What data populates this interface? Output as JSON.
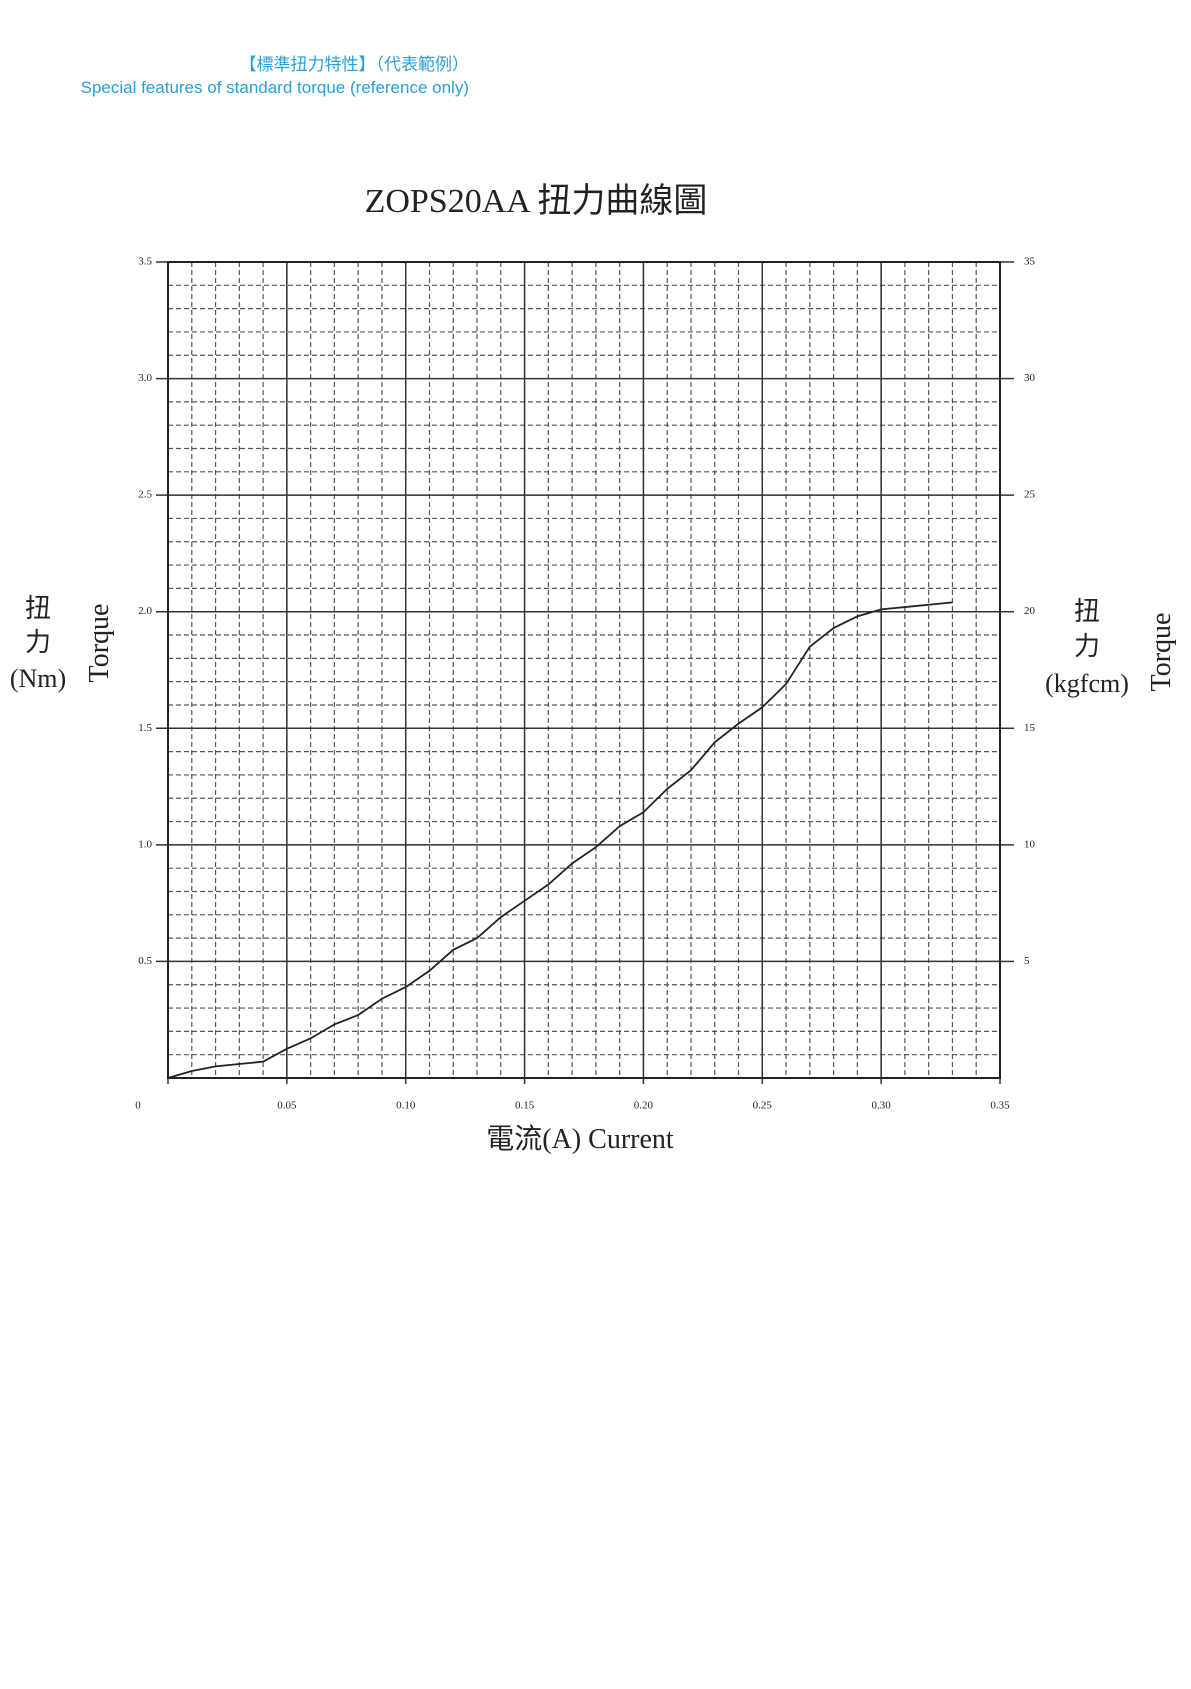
{
  "header": {
    "title": "【標準扭力特性】（代表範例）",
    "subtitle": "Special features of standard torque  (reference only)"
  },
  "chart_data": {
    "type": "line",
    "title": "ZOPS20AA 扭力曲線圖",
    "x_label": "電流(A) Current",
    "y_label": {
      "zh": "扭",
      "zh2": "力",
      "unit": "(Nm)",
      "en": "Torque"
    },
    "y2_label": {
      "zh": "扭",
      "zh2": "力",
      "unit": "(kgfcm)",
      "en": "Torque"
    },
    "x": [
      0,
      0.01,
      0.02,
      0.03,
      0.04,
      0.05,
      0.06,
      0.07,
      0.08,
      0.09,
      0.1,
      0.11,
      0.12,
      0.13,
      0.14,
      0.15,
      0.16,
      0.17,
      0.18,
      0.19,
      0.2,
      0.21,
      0.22,
      0.23,
      0.24,
      0.25,
      0.26,
      0.27,
      0.28,
      0.29,
      0.3,
      0.31,
      0.32,
      0.33
    ],
    "series": [
      {
        "color": "#222222",
        "values": [
          0,
          0.03,
          0.05,
          0.06,
          0.07,
          0.125,
          0.17,
          0.23,
          0.27,
          0.34,
          0.39,
          0.46,
          0.55,
          0.6,
          0.69,
          0.76,
          0.83,
          0.92,
          0.99,
          1.08,
          1.14,
          1.24,
          1.32,
          1.44,
          1.52,
          1.59,
          1.69,
          1.85,
          1.93,
          1.98,
          2.01,
          2.02,
          2.03,
          2.04
        ]
      }
    ],
    "xlim": [
      0,
      0.35
    ],
    "xticks": [
      0,
      0.05,
      {
        "value": 0.1,
        "label": "0.10"
      },
      0.15,
      {
        "value": 0.2,
        "label": "0.20"
      },
      0.25,
      {
        "value": 0.3,
        "label": "0.30"
      },
      0.35
    ],
    "ylim": [
      0,
      3.5
    ],
    "yticks": [
      0.5,
      {
        "value": 1,
        "label": "1.0"
      },
      1.5,
      {
        "value": 2,
        "label": "2.0"
      },
      2.5,
      {
        "value": 3,
        "label": "3.0"
      },
      3.5
    ],
    "y2lim": [
      0,
      35
    ],
    "y2ticks": [
      5,
      10,
      15,
      20,
      25,
      30,
      35
    ],
    "grid": true,
    "x_minor_step": 0.01,
    "y_minor_step": 0.1
  }
}
